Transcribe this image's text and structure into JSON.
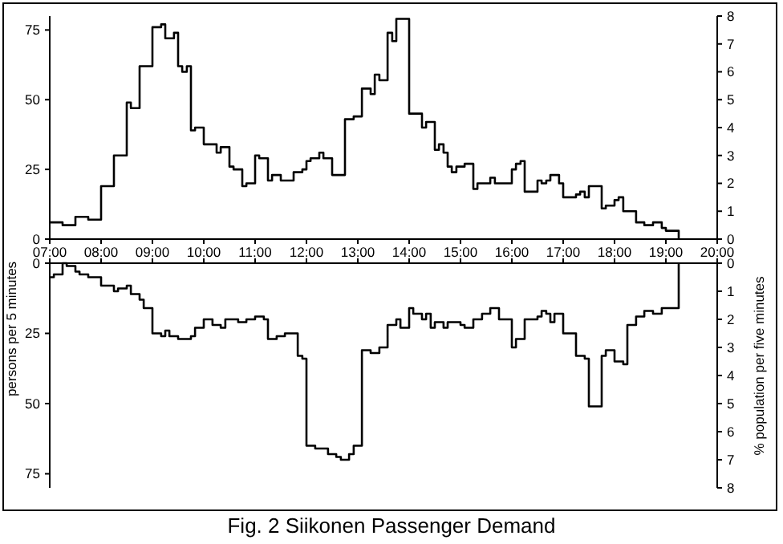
{
  "chart_data": [
    {
      "type": "step",
      "title": "Fig. 2 Siikonen Passenger Demand",
      "series": [
        {
          "color": "#000000",
          "x": [
            7,
            7.25,
            7.5,
            7.75,
            8,
            8.25,
            8.5,
            8.58,
            8.75,
            9,
            9.17,
            9.25,
            9.42,
            9.5,
            9.58,
            9.67,
            9.75,
            9.83,
            10,
            10.25,
            10.33,
            10.5,
            10.58,
            10.75,
            10.83,
            11,
            11.08,
            11.25,
            11.33,
            11.5,
            11.75,
            11.92,
            12,
            12.08,
            12.25,
            12.33,
            12.5,
            12.75,
            12.92,
            13.08,
            13.25,
            13.33,
            13.42,
            13.58,
            13.67,
            13.75,
            14,
            14.25,
            14.33,
            14.5,
            14.58,
            14.67,
            14.75,
            14.83,
            14.92,
            15.08,
            15.25,
            15.33,
            15.58,
            15.67,
            16,
            16.08,
            16.17,
            16.25,
            16.5,
            16.58,
            16.67,
            16.75,
            16.92,
            17,
            17.25,
            17.33,
            17.42,
            17.5,
            17.75,
            17.83,
            18,
            18.08,
            18.17,
            18.42,
            18.58,
            18.75,
            18.92,
            19,
            19.25
          ],
          "values": [
            6,
            5,
            8,
            7,
            19,
            30,
            49,
            47,
            62,
            76,
            77,
            72,
            74,
            62,
            60,
            62,
            39,
            40,
            34,
            31,
            33,
            26,
            25,
            19,
            20,
            30,
            29,
            21,
            23,
            21,
            24,
            25,
            28,
            29,
            31,
            29,
            23,
            43,
            44,
            54,
            52,
            59,
            57,
            74,
            71,
            79,
            45,
            40,
            42,
            32,
            34,
            31,
            26,
            24,
            26,
            27,
            18,
            20,
            22,
            20,
            25,
            27,
            28,
            17,
            21,
            20,
            21,
            23,
            20,
            15,
            16,
            17,
            15,
            19,
            11,
            12,
            14,
            15,
            10,
            6,
            5,
            6,
            4,
            3,
            0
          ]
        }
      ],
      "xlim": [
        7,
        20
      ],
      "xticks": [
        {
          "value": 7,
          "label": "07:00"
        },
        {
          "value": 8,
          "label": "08:00"
        },
        {
          "value": 9,
          "label": "09:00"
        },
        {
          "value": 10,
          "label": "10:00"
        },
        {
          "value": 11,
          "label": "11:00"
        },
        {
          "value": 12,
          "label": "12:00"
        },
        {
          "value": 13,
          "label": "13:00"
        },
        {
          "value": 14,
          "label": "14:00"
        },
        {
          "value": 15,
          "label": "15:00"
        },
        {
          "value": 16,
          "label": "16:00"
        },
        {
          "value": 17,
          "label": "17:00"
        },
        {
          "value": 18,
          "label": "18:00"
        },
        {
          "value": 19,
          "label": "19:00"
        },
        {
          "value": 20,
          "label": "20:00"
        }
      ],
      "ylim": [
        0,
        80
      ],
      "yticks": [
        0,
        25,
        50,
        75
      ],
      "y2lim": [
        0,
        8
      ],
      "y2ticks": [
        0,
        1,
        2,
        3,
        4,
        5,
        6,
        7,
        8
      ],
      "grid": false
    },
    {
      "type": "step",
      "ylabel": "persons per 5 minutes",
      "y2label": "% population per five minutes",
      "series": [
        {
          "color": "#000000",
          "x": [
            7,
            7.08,
            7.25,
            7.33,
            7.5,
            7.58,
            7.75,
            8,
            8.25,
            8.33,
            8.5,
            8.58,
            8.75,
            8.83,
            9,
            9.17,
            9.25,
            9.33,
            9.5,
            9.75,
            9.83,
            10,
            10.17,
            10.33,
            10.42,
            10.67,
            10.83,
            11,
            11.17,
            11.25,
            11.42,
            11.58,
            11.83,
            11.92,
            12,
            12.17,
            12.42,
            12.58,
            12.67,
            12.83,
            12.92,
            13.08,
            13.25,
            13.42,
            13.58,
            13.75,
            13.83,
            14,
            14.08,
            14.25,
            14.33,
            14.42,
            14.5,
            14.67,
            14.75,
            15,
            15.08,
            15.25,
            15.42,
            15.58,
            15.75,
            16,
            16.08,
            16.25,
            16.5,
            16.58,
            16.67,
            16.75,
            16.83,
            17,
            17.25,
            17.42,
            17.5,
            17.75,
            17.83,
            18,
            18.17,
            18.25,
            18.42,
            18.58,
            18.75,
            18.92,
            19.25
          ],
          "values": [
            5,
            4,
            0,
            1,
            3,
            4,
            5,
            8,
            10,
            9,
            8,
            11,
            13,
            16,
            25,
            26,
            24,
            26,
            27,
            26,
            23,
            20,
            22,
            23,
            20,
            21,
            20,
            19,
            20,
            27,
            26,
            25,
            33,
            34,
            65,
            66,
            68,
            69,
            70,
            68,
            65,
            31,
            32,
            30,
            22,
            20,
            23,
            16,
            18,
            20,
            18,
            23,
            21,
            23,
            21,
            22,
            23,
            20,
            18,
            16,
            20,
            30,
            27,
            20,
            19,
            17,
            18,
            21,
            18,
            25,
            33,
            34,
            51,
            33,
            31,
            35,
            36,
            22,
            19,
            17,
            18,
            16,
            0
          ]
        }
      ],
      "xlim": [
        7,
        20
      ],
      "xticks": [
        {
          "value": 7,
          "label": null
        },
        {
          "value": 8,
          "label": null
        },
        {
          "value": 9,
          "label": null
        },
        {
          "value": 10,
          "label": null
        },
        {
          "value": 11,
          "label": null
        },
        {
          "value": 12,
          "label": null
        },
        {
          "value": 13,
          "label": null
        },
        {
          "value": 14,
          "label": null
        },
        {
          "value": 15,
          "label": null
        },
        {
          "value": 16,
          "label": null
        },
        {
          "value": 17,
          "label": null
        },
        {
          "value": 18,
          "label": null
        },
        {
          "value": 19,
          "label": null
        },
        {
          "value": 20,
          "label": null
        }
      ],
      "ylim": [
        80,
        0
      ],
      "yticks": [
        0,
        25,
        50,
        75
      ],
      "y2lim": [
        8,
        0
      ],
      "y2ticks": [
        0,
        1,
        2,
        3,
        4,
        5,
        6,
        7,
        8
      ],
      "tick_labels": "y",
      "grid": false
    }
  ]
}
